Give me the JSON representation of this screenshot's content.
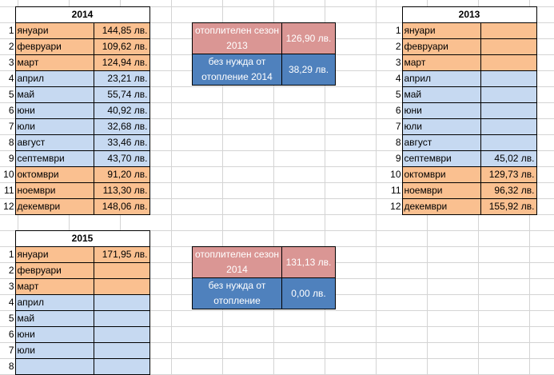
{
  "tables": [
    {
      "id": "2014",
      "year": "2014",
      "rows": [
        {
          "n": "1",
          "month": "януари",
          "value": "144,85 лв.",
          "color": "orange"
        },
        {
          "n": "2",
          "month": "февруари",
          "value": "109,62 лв.",
          "color": "orange"
        },
        {
          "n": "3",
          "month": "март",
          "value": "124,94 лв.",
          "color": "orange"
        },
        {
          "n": "4",
          "month": "април",
          "value": "23,21 лв.",
          "color": "blue"
        },
        {
          "n": "5",
          "month": "май",
          "value": "55,74 лв.",
          "color": "blue"
        },
        {
          "n": "6",
          "month": "юни",
          "value": "40,92 лв.",
          "color": "blue"
        },
        {
          "n": "7",
          "month": "юли",
          "value": "32,68 лв.",
          "color": "blue"
        },
        {
          "n": "8",
          "month": "август",
          "value": "33,46 лв.",
          "color": "blue"
        },
        {
          "n": "9",
          "month": "септември",
          "value": "43,70 лв.",
          "color": "blue"
        },
        {
          "n": "10",
          "month": "октомври",
          "value": "91,20 лв.",
          "color": "orange"
        },
        {
          "n": "11",
          "month": "ноември",
          "value": "113,30 лв.",
          "color": "orange"
        },
        {
          "n": "12",
          "month": "декември",
          "value": "148,06 лв.",
          "color": "orange"
        }
      ]
    },
    {
      "id": "2013",
      "year": "2013",
      "rows": [
        {
          "n": "1",
          "month": "януари",
          "value": "",
          "color": "orange"
        },
        {
          "n": "2",
          "month": "февруари",
          "value": "",
          "color": "orange"
        },
        {
          "n": "3",
          "month": "март",
          "value": "",
          "color": "orange"
        },
        {
          "n": "4",
          "month": "април",
          "value": "",
          "color": "blue"
        },
        {
          "n": "5",
          "month": "май",
          "value": "",
          "color": "blue"
        },
        {
          "n": "6",
          "month": "юни",
          "value": "",
          "color": "blue"
        },
        {
          "n": "7",
          "month": "юли",
          "value": "",
          "color": "blue"
        },
        {
          "n": "8",
          "month": "август",
          "value": "",
          "color": "blue"
        },
        {
          "n": "9",
          "month": "септември",
          "value": "45,02 лв.",
          "color": "blue"
        },
        {
          "n": "10",
          "month": "октомври",
          "value": "129,73 лв.",
          "color": "orange"
        },
        {
          "n": "11",
          "month": "ноември",
          "value": "96,32 лв.",
          "color": "orange"
        },
        {
          "n": "12",
          "month": "декември",
          "value": "155,92 лв.",
          "color": "orange"
        }
      ]
    },
    {
      "id": "2015",
      "year": "2015",
      "rows": [
        {
          "n": "1",
          "month": "януари",
          "value": "171,95 лв.",
          "color": "orange"
        },
        {
          "n": "2",
          "month": "февруари",
          "value": "",
          "color": "orange"
        },
        {
          "n": "3",
          "month": "март",
          "value": "",
          "color": "orange"
        },
        {
          "n": "4",
          "month": "април",
          "value": "",
          "color": "blue"
        },
        {
          "n": "5",
          "month": "май",
          "value": "",
          "color": "blue"
        },
        {
          "n": "6",
          "month": "юни",
          "value": "",
          "color": "blue"
        },
        {
          "n": "7",
          "month": "юли",
          "value": "",
          "color": "blue"
        },
        {
          "n": "8",
          "month": "",
          "value": "",
          "color": "blue"
        }
      ]
    }
  ],
  "summaries": [
    {
      "id": "summary-2013",
      "heating_label": "отоплителен сезон 2013",
      "heating_value": "126,90 лв.",
      "nonheating_label": "без нужда от отопление 2014",
      "nonheating_value": "38,29 лв."
    },
    {
      "id": "summary-2014",
      "heating_label": "отоплителен сезон 2014",
      "heating_value": "131,13 лв.",
      "nonheating_label": "без нужда от отопление",
      "nonheating_value": "0,00 лв."
    }
  ],
  "colors": {
    "orange": "#fac090",
    "blue": "#c6d9f1",
    "pink": "#da9694",
    "dark_blue": "#4f81bd"
  }
}
